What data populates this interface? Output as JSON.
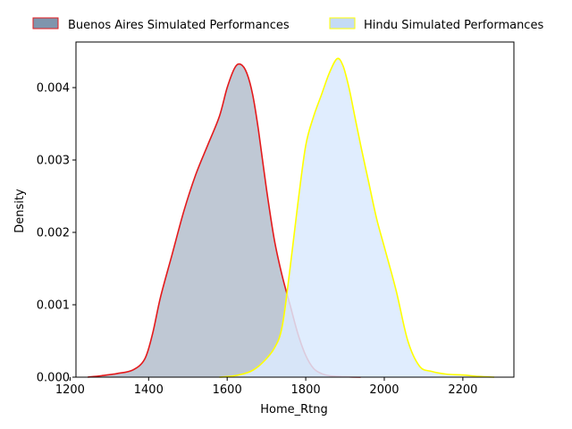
{
  "chart_data": {
    "type": "area",
    "title": "",
    "xlabel": "Home_Rtng",
    "ylabel": "Density",
    "xlim": [
      1215,
      2330
    ],
    "ylim": [
      0,
      0.00463
    ],
    "x_ticks": [
      1200,
      1400,
      1600,
      1800,
      2000,
      2200
    ],
    "x_tick_labels": [
      "1200",
      "1400",
      "1600",
      "1800",
      "2000",
      "2200"
    ],
    "y_ticks": [
      0,
      0.001,
      0.002,
      0.003,
      0.004
    ],
    "y_tick_labels": [
      "0.000",
      "0.001",
      "0.002",
      "0.003",
      "0.004"
    ],
    "grid": false,
    "legend_position": "top, above plot",
    "series": [
      {
        "name": "Buenos Aires Simulated Performances",
        "fill": "#94a3b8",
        "fill_opacity": 0.6,
        "line": "#e41a1c",
        "legend_swatch": "#7f95ad",
        "x": [
          1245,
          1280,
          1320,
          1360,
          1390,
          1410,
          1430,
          1460,
          1490,
          1520,
          1550,
          1580,
          1600,
          1620,
          1635,
          1650,
          1665,
          1680,
          1700,
          1720,
          1740,
          1760,
          1780,
          1800,
          1820,
          1840,
          1860,
          1880,
          1900,
          1940
        ],
        "values": [
          0.0,
          2e-05,
          5e-05,
          0.0001,
          0.00025,
          0.0006,
          0.0011,
          0.0017,
          0.0023,
          0.0028,
          0.0032,
          0.0036,
          0.004,
          0.00428,
          0.00432,
          0.0042,
          0.0039,
          0.0034,
          0.0026,
          0.0019,
          0.0014,
          0.001,
          0.0006,
          0.0003,
          0.00012,
          5e-05,
          2e-05,
          1e-05,
          5e-06,
          0.0
        ]
      },
      {
        "name": "Hindu Simulated Performances",
        "fill": "#dbeafe",
        "fill_opacity": 0.85,
        "line": "#ffff00",
        "legend_swatch": "#c4dbf6",
        "x": [
          1580,
          1620,
          1660,
          1690,
          1720,
          1740,
          1760,
          1780,
          1800,
          1820,
          1840,
          1860,
          1880,
          1895,
          1910,
          1925,
          1940,
          1960,
          1980,
          2000,
          2030,
          2060,
          2090,
          2120,
          2160,
          2200,
          2240,
          2280
        ],
        "values": [
          0.0,
          2e-05,
          8e-05,
          0.0002,
          0.0004,
          0.0007,
          0.0015,
          0.0024,
          0.0032,
          0.0036,
          0.0039,
          0.0042,
          0.0044,
          0.0043,
          0.004,
          0.0036,
          0.0032,
          0.0027,
          0.0022,
          0.0018,
          0.0012,
          0.0005,
          0.00015,
          8e-05,
          4e-05,
          3e-05,
          1e-05,
          0.0
        ]
      }
    ]
  }
}
